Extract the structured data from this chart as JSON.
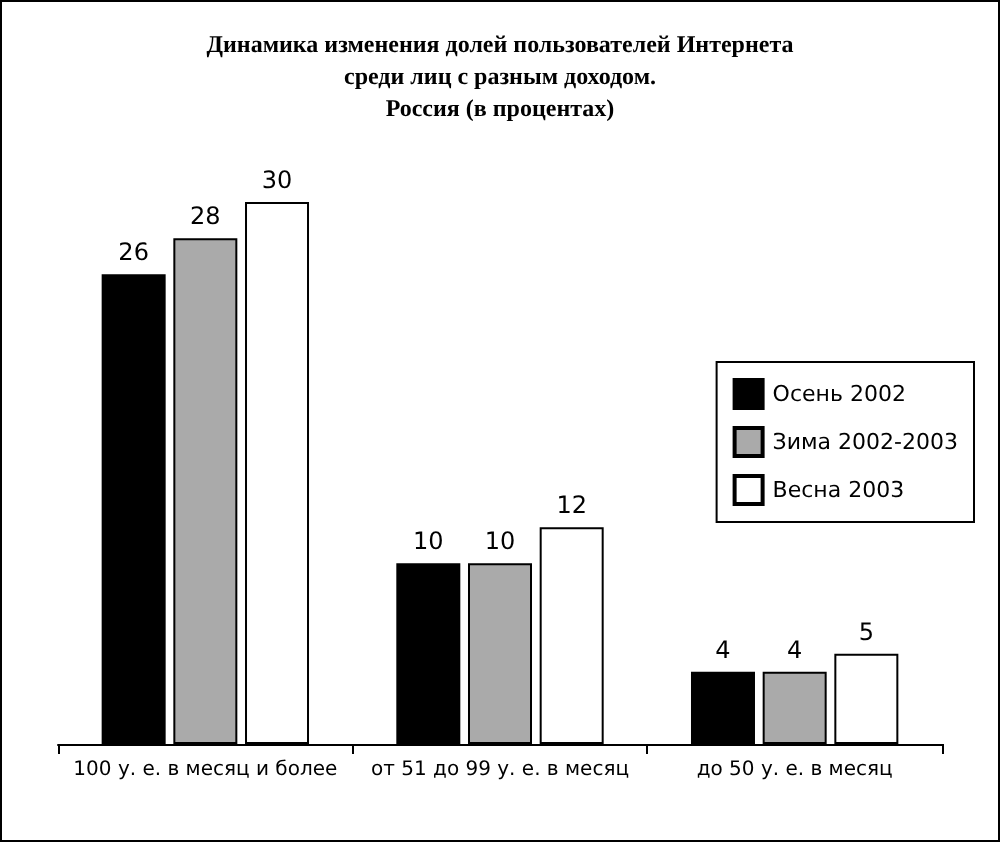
{
  "chart_data": {
    "type": "bar",
    "title": "Динамика изменения долей пользователей Интернета\nсреди лиц с разным доходом.\nРоссия (в процентах)",
    "categories": [
      "100 у. е. в месяц и более",
      "от 51 до 99 у. е. в месяц",
      "до 50 у. е. в месяц"
    ],
    "series": [
      {
        "name": "Осень 2002",
        "color": "#000000",
        "values": [
          26,
          10,
          4
        ]
      },
      {
        "name": "Зима 2002-2003",
        "color": "#aaaaaa",
        "values": [
          28,
          10,
          4
        ]
      },
      {
        "name": "Весна 2003",
        "color": "#ffffff",
        "values": [
          30,
          12,
          5
        ]
      }
    ],
    "data_labels": true,
    "legend": "right"
  }
}
